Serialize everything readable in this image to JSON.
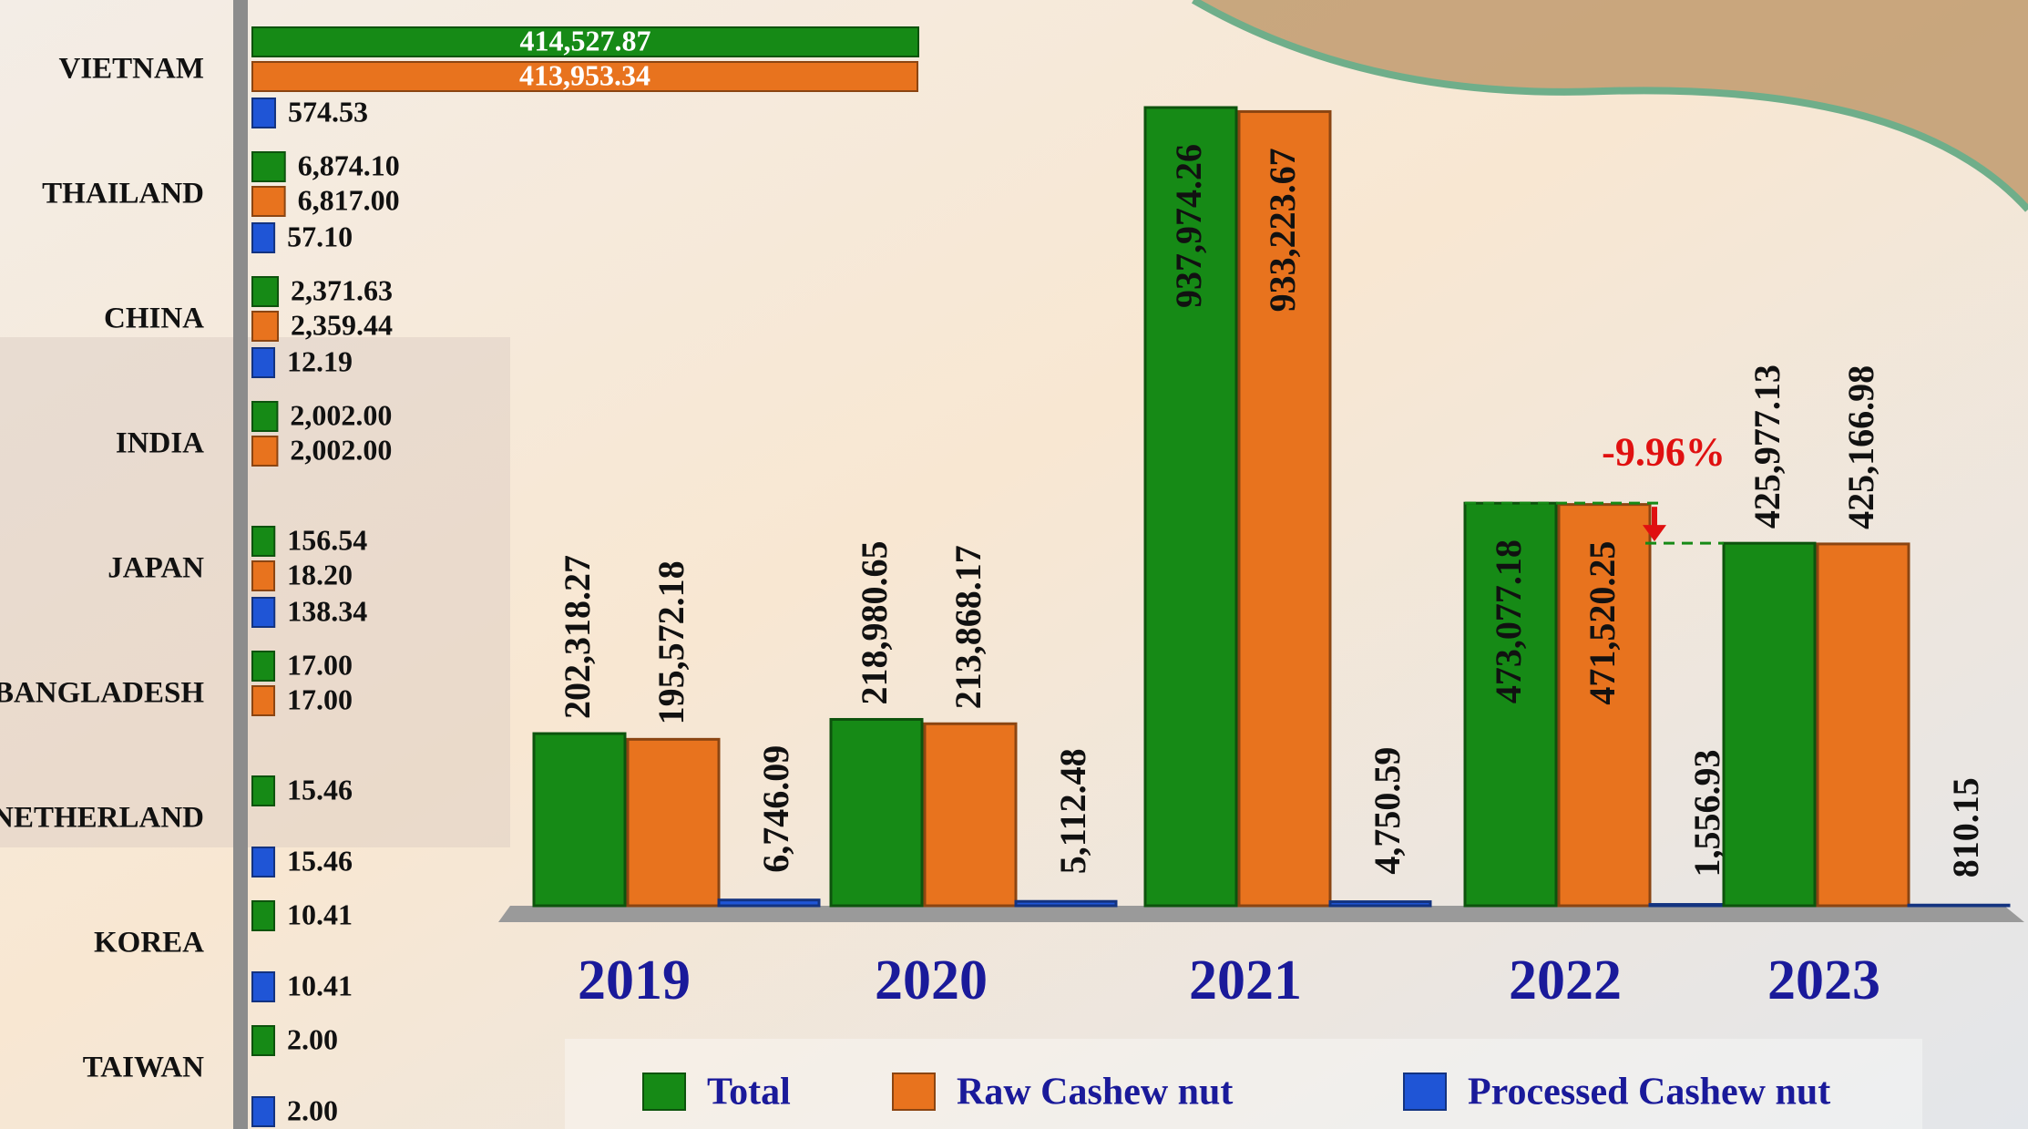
{
  "chart_data": [
    {
      "type": "hbar",
      "categories": [
        "VIETNAM",
        "THAILAND",
        "CHINA",
        "INDIA",
        "JAPAN",
        "BANGLADESH",
        "NETHERLAND",
        "KOREA",
        "TAIWAN"
      ],
      "series": [
        {
          "color": "#168a16",
          "values": [
            414527.87,
            6874.1,
            2371.63,
            2002.0,
            156.54,
            17.0,
            15.46,
            10.41,
            2.0
          ],
          "value_labels": [
            "414,527.87",
            "6,874.10",
            "2,371.63",
            "2,002.00",
            "156.54",
            "17.00",
            "15.46",
            "10.41",
            "2.00"
          ]
        },
        {
          "color": "#e8731e",
          "values": [
            413953.34,
            6817.0,
            2359.44,
            2002.0,
            18.2,
            17.0,
            null,
            null,
            null
          ],
          "value_labels": [
            "413,953.34",
            "6,817.00",
            "2,359.44",
            "2,002.00",
            "18.20",
            "17.00",
            null,
            null,
            null
          ]
        },
        {
          "color": "#1f55d6",
          "values": [
            574.53,
            57.1,
            12.19,
            null,
            138.34,
            null,
            15.46,
            10.41,
            2.0
          ],
          "value_labels": [
            "574.53",
            "57.10",
            "12.19",
            null,
            "138.34",
            null,
            "15.46",
            "10.41",
            "2.00"
          ]
        }
      ]
    },
    {
      "type": "bar",
      "categories": [
        "2019",
        "2020",
        "2021",
        "2022",
        "2023"
      ],
      "series": [
        {
          "name": "Total",
          "color": "#168a16",
          "values": [
            202318.27,
            218980.65,
            937974.26,
            473077.18,
            425977.13
          ],
          "value_labels": [
            "202,318.27",
            "218,980.65",
            "937,974.26",
            "473,077.18",
            "425,977.13"
          ]
        },
        {
          "name": "Raw Cashew nut",
          "color": "#e8731e",
          "values": [
            195572.18,
            213868.17,
            933223.67,
            471520.25,
            425166.98
          ],
          "value_labels": [
            "195,572.18",
            "213,868.17",
            "933,223.67",
            "471,520.25",
            "425,166.98"
          ]
        },
        {
          "name": "Processed Cashew nut",
          "color": "#1f55d6",
          "values": [
            6746.09,
            5112.48,
            4750.59,
            1556.93,
            810.15
          ],
          "value_labels": [
            "6,746.09",
            "5,112.48",
            "4,750.59",
            "1,556.93",
            "810.15"
          ]
        }
      ],
      "annotation": "-9.96%"
    }
  ]
}
